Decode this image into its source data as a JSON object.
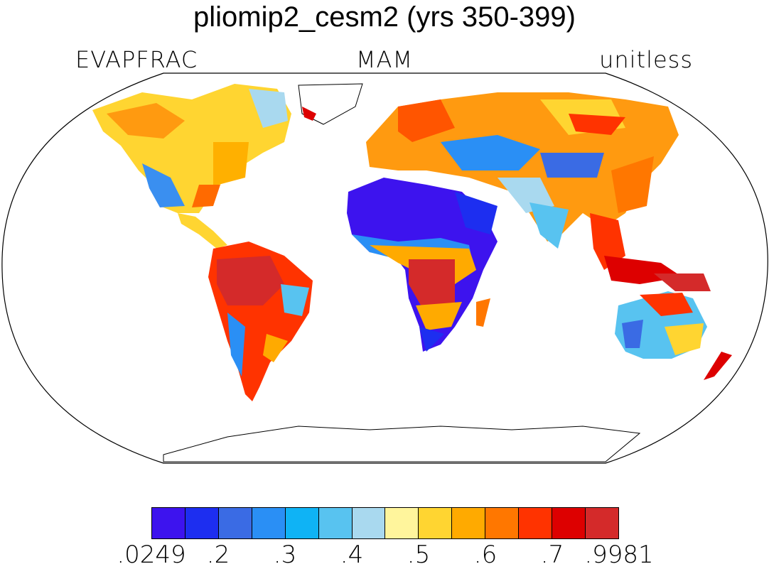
{
  "title": "pliomip2_cesm2 (yrs 350-399)",
  "subtitle": {
    "left": "EVAPFRAC",
    "center": "MAM",
    "right": "unitless"
  },
  "colorbar": {
    "colors": [
      "#3d13ee",
      "#1d2ef0",
      "#3a6be4",
      "#2a8ff5",
      "#0fb3f5",
      "#58c3f0",
      "#a9d9ef",
      "#fff59c",
      "#ffd531",
      "#ffaa00",
      "#ff7700",
      "#ff3300",
      "#dd0000",
      "#d42a2a"
    ],
    "labels": [
      ".0249",
      ".2",
      ".3",
      ".4",
      ".5",
      ".6",
      ".7",
      ".9981"
    ]
  }
}
